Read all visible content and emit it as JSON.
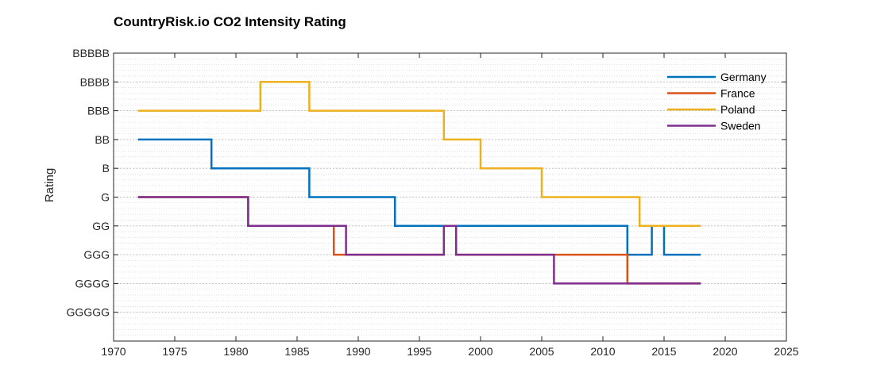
{
  "chart_data": {
    "type": "line",
    "step": true,
    "title": "CountryRisk.io CO2 Intensity Rating",
    "xlabel": "",
    "ylabel": "Rating",
    "xlim": [
      1970,
      2025
    ],
    "xticks": [
      1970,
      1975,
      1980,
      1985,
      1990,
      1995,
      2000,
      2005,
      2010,
      2015,
      2020,
      2025
    ],
    "ycategories": [
      "GGGGG",
      "GGGG",
      "GGG",
      "GG",
      "G",
      "B",
      "BB",
      "BBB",
      "BBBB",
      "BBBBB"
    ],
    "grid": true,
    "legend_position": "top-right",
    "series": [
      {
        "name": "Germany",
        "color": "#0072BD",
        "points": [
          [
            1972,
            "BB"
          ],
          [
            1978,
            "B"
          ],
          [
            1986,
            "G"
          ],
          [
            1993,
            "GG"
          ],
          [
            2012,
            "GGG"
          ],
          [
            2014,
            "GG"
          ],
          [
            2015,
            "GGG"
          ],
          [
            2018,
            "GGG"
          ]
        ]
      },
      {
        "name": "France",
        "color": "#D95319",
        "points": [
          [
            1972,
            "G"
          ],
          [
            1981,
            "GG"
          ],
          [
            1988,
            "GGG"
          ],
          [
            1997,
            "GG"
          ],
          [
            1998,
            "GGG"
          ],
          [
            2012,
            "GGGG"
          ],
          [
            2018,
            "GGGG"
          ]
        ]
      },
      {
        "name": "Poland",
        "color": "#EDB120",
        "points": [
          [
            1972,
            "BBB"
          ],
          [
            1982,
            "BBBB"
          ],
          [
            1986,
            "BBB"
          ],
          [
            1997,
            "BB"
          ],
          [
            2000,
            "B"
          ],
          [
            2005,
            "G"
          ],
          [
            2013,
            "GG"
          ],
          [
            2018,
            "GG"
          ]
        ]
      },
      {
        "name": "Sweden",
        "color": "#7E2F8E",
        "points": [
          [
            1972,
            "G"
          ],
          [
            1981,
            "GG"
          ],
          [
            1989,
            "GGG"
          ],
          [
            1997,
            "GG"
          ],
          [
            1998,
            "GGG"
          ],
          [
            2006,
            "GGGG"
          ],
          [
            2018,
            "GGGG"
          ]
        ]
      }
    ]
  }
}
